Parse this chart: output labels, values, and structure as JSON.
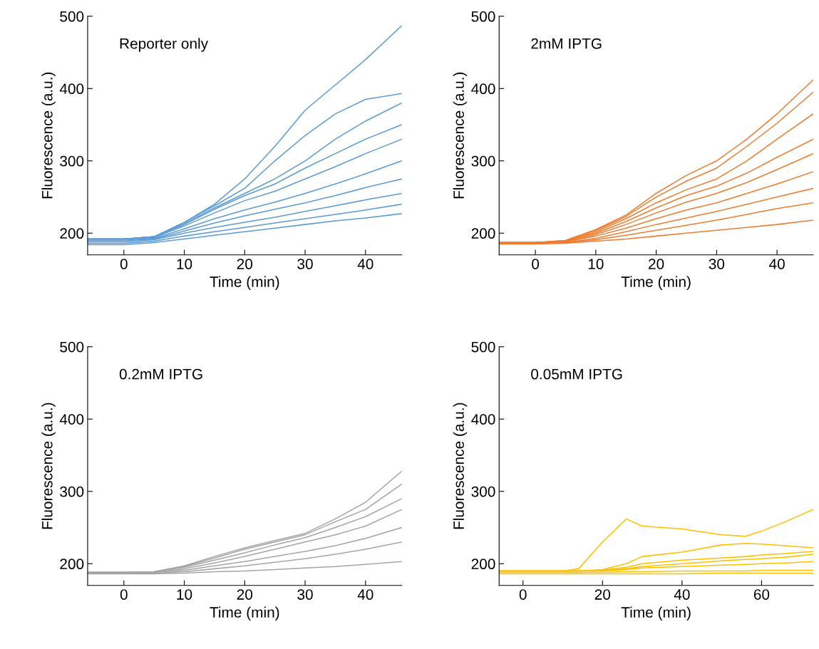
{
  "chart_data": [
    {
      "type": "line",
      "xlabel": "Time (min)",
      "ylabel": "Fluorescence (a.u.)",
      "annotations": [
        "Reporter only"
      ],
      "xlim": [
        -6,
        46
      ],
      "ylim": [
        170,
        500
      ],
      "xticks": [
        0,
        10,
        20,
        30,
        40
      ],
      "yticks": [
        200,
        300,
        400,
        500
      ],
      "x": [
        -6,
        0,
        5,
        10,
        15,
        20,
        25,
        30,
        35,
        40,
        46
      ],
      "series": [
        {
          "color": "#5b9bd5",
          "values": [
            192,
            192,
            195,
            215,
            240,
            275,
            320,
            370,
            405,
            440,
            487
          ]
        },
        {
          "color": "#5b9bd5",
          "values": [
            192,
            192,
            195,
            215,
            238,
            262,
            300,
            335,
            365,
            385,
            393
          ]
        },
        {
          "color": "#5b9bd5",
          "values": [
            192,
            192,
            195,
            213,
            235,
            255,
            275,
            300,
            330,
            355,
            380
          ]
        },
        {
          "color": "#5b9bd5",
          "values": [
            192,
            192,
            195,
            212,
            233,
            252,
            268,
            290,
            310,
            330,
            350
          ]
        },
        {
          "color": "#5b9bd5",
          "values": [
            192,
            192,
            194,
            210,
            228,
            245,
            258,
            275,
            292,
            310,
            330
          ]
        },
        {
          "color": "#5b9bd5",
          "values": [
            190,
            190,
            193,
            206,
            220,
            232,
            243,
            255,
            268,
            282,
            300
          ]
        },
        {
          "color": "#5b9bd5",
          "values": [
            190,
            190,
            192,
            203,
            214,
            224,
            233,
            242,
            252,
            263,
            275
          ]
        },
        {
          "color": "#5b9bd5",
          "values": [
            188,
            188,
            191,
            200,
            208,
            215,
            222,
            230,
            238,
            246,
            255
          ]
        },
        {
          "color": "#5b9bd5",
          "values": [
            186,
            186,
            189,
            196,
            202,
            208,
            214,
            220,
            226,
            232,
            240
          ]
        },
        {
          "color": "#5b9bd5",
          "values": [
            184,
            184,
            187,
            192,
            197,
            202,
            207,
            212,
            217,
            221,
            227
          ]
        }
      ]
    },
    {
      "type": "line",
      "xlabel": "Time (min)",
      "ylabel": "Fluorescence (a.u.)",
      "annotations": [
        "2mM IPTG"
      ],
      "xlim": [
        -6,
        46
      ],
      "ylim": [
        170,
        500
      ],
      "xticks": [
        0,
        10,
        20,
        30,
        40
      ],
      "yticks": [
        200,
        300,
        400,
        500
      ],
      "x": [
        -6,
        0,
        5,
        10,
        15,
        20,
        25,
        30,
        35,
        40,
        46
      ],
      "series": [
        {
          "color": "#ed7d31",
          "values": [
            187,
            187,
            190,
            205,
            225,
            255,
            280,
            300,
            330,
            365,
            412
          ]
        },
        {
          "color": "#ed7d31",
          "values": [
            187,
            187,
            190,
            204,
            223,
            250,
            272,
            290,
            320,
            352,
            395
          ]
        },
        {
          "color": "#ed7d31",
          "values": [
            187,
            187,
            189,
            202,
            220,
            242,
            260,
            275,
            300,
            330,
            365
          ]
        },
        {
          "color": "#ed7d31",
          "values": [
            187,
            187,
            189,
            200,
            216,
            235,
            252,
            265,
            283,
            305,
            330
          ]
        },
        {
          "color": "#ed7d31",
          "values": [
            187,
            187,
            188,
            198,
            212,
            228,
            243,
            255,
            270,
            288,
            310
          ]
        },
        {
          "color": "#ed7d31",
          "values": [
            187,
            187,
            188,
            196,
            207,
            220,
            232,
            242,
            255,
            268,
            285
          ]
        },
        {
          "color": "#ed7d31",
          "values": [
            186,
            186,
            187,
            193,
            202,
            212,
            221,
            230,
            240,
            250,
            262
          ]
        },
        {
          "color": "#ed7d31",
          "values": [
            186,
            186,
            187,
            191,
            197,
            204,
            211,
            218,
            226,
            234,
            242
          ]
        },
        {
          "color": "#ed7d31",
          "values": [
            185,
            185,
            186,
            189,
            192,
            196,
            200,
            204,
            208,
            212,
            218
          ]
        }
      ]
    },
    {
      "type": "line",
      "xlabel": "Time (min)",
      "ylabel": "Fluorescence (a.u.)",
      "annotations": [
        "0.2mM IPTG"
      ],
      "xlim": [
        -6,
        46
      ],
      "ylim": [
        170,
        500
      ],
      "xticks": [
        0,
        10,
        20,
        30,
        40
      ],
      "yticks": [
        200,
        300,
        400,
        500
      ],
      "x": [
        -6,
        0,
        5,
        10,
        15,
        20,
        25,
        30,
        35,
        40,
        46
      ],
      "series": [
        {
          "color": "#a5a5a5",
          "values": [
            188,
            188,
            189,
            197,
            210,
            222,
            232,
            242,
            262,
            285,
            328
          ]
        },
        {
          "color": "#a5a5a5",
          "values": [
            188,
            188,
            189,
            196,
            208,
            220,
            230,
            240,
            258,
            275,
            310
          ]
        },
        {
          "color": "#a5a5a5",
          "values": [
            188,
            188,
            189,
            195,
            205,
            215,
            226,
            236,
            250,
            265,
            290
          ]
        },
        {
          "color": "#a5a5a5",
          "values": [
            188,
            188,
            188,
            193,
            201,
            210,
            220,
            230,
            240,
            252,
            275
          ]
        },
        {
          "color": "#a5a5a5",
          "values": [
            188,
            188,
            188,
            191,
            197,
            203,
            210,
            217,
            225,
            235,
            250
          ]
        },
        {
          "color": "#a5a5a5",
          "values": [
            187,
            187,
            187,
            189,
            193,
            197,
            202,
            207,
            213,
            220,
            230
          ]
        },
        {
          "color": "#a5a5a5",
          "values": [
            186,
            186,
            186,
            187,
            189,
            190,
            192,
            194,
            196,
            199,
            203
          ]
        }
      ]
    },
    {
      "type": "line",
      "xlabel": "Time (min)",
      "ylabel": "Fluorescence (a.u.)",
      "annotations": [
        "0.05mM IPTG"
      ],
      "xlim": [
        -6,
        73
      ],
      "ylim": [
        170,
        500
      ],
      "xticks": [
        0,
        20,
        40,
        60
      ],
      "yticks": [
        200,
        300,
        400,
        500
      ],
      "x": [
        -6,
        0,
        10,
        14,
        20,
        26,
        30,
        40,
        50,
        56,
        60,
        66,
        73
      ],
      "series": [
        {
          "color": "#ffc000",
          "values": [
            190,
            190,
            190,
            193,
            230,
            262,
            252,
            248,
            240,
            238,
            245,
            258,
            275
          ]
        },
        {
          "color": "#ffc000",
          "values": [
            190,
            190,
            190,
            190,
            192,
            200,
            210,
            216,
            226,
            228,
            227,
            225,
            222
          ]
        },
        {
          "color": "#ffc000",
          "values": [
            190,
            190,
            190,
            190,
            191,
            195,
            200,
            205,
            208,
            210,
            212,
            214,
            217
          ]
        },
        {
          "color": "#ffc000",
          "values": [
            190,
            190,
            190,
            190,
            191,
            193,
            196,
            200,
            204,
            206,
            207,
            209,
            213
          ]
        },
        {
          "color": "#ffc000",
          "values": [
            190,
            190,
            190,
            190,
            190,
            192,
            194,
            196,
            198,
            199,
            200,
            201,
            203
          ]
        },
        {
          "color": "#ffc000",
          "values": [
            188,
            188,
            188,
            188,
            188,
            189,
            189,
            190,
            190,
            190,
            191,
            191,
            191
          ]
        },
        {
          "color": "#ffc000",
          "values": [
            186,
            186,
            186,
            186,
            186,
            186,
            186,
            186,
            187,
            187,
            187,
            187,
            187
          ]
        }
      ]
    }
  ]
}
